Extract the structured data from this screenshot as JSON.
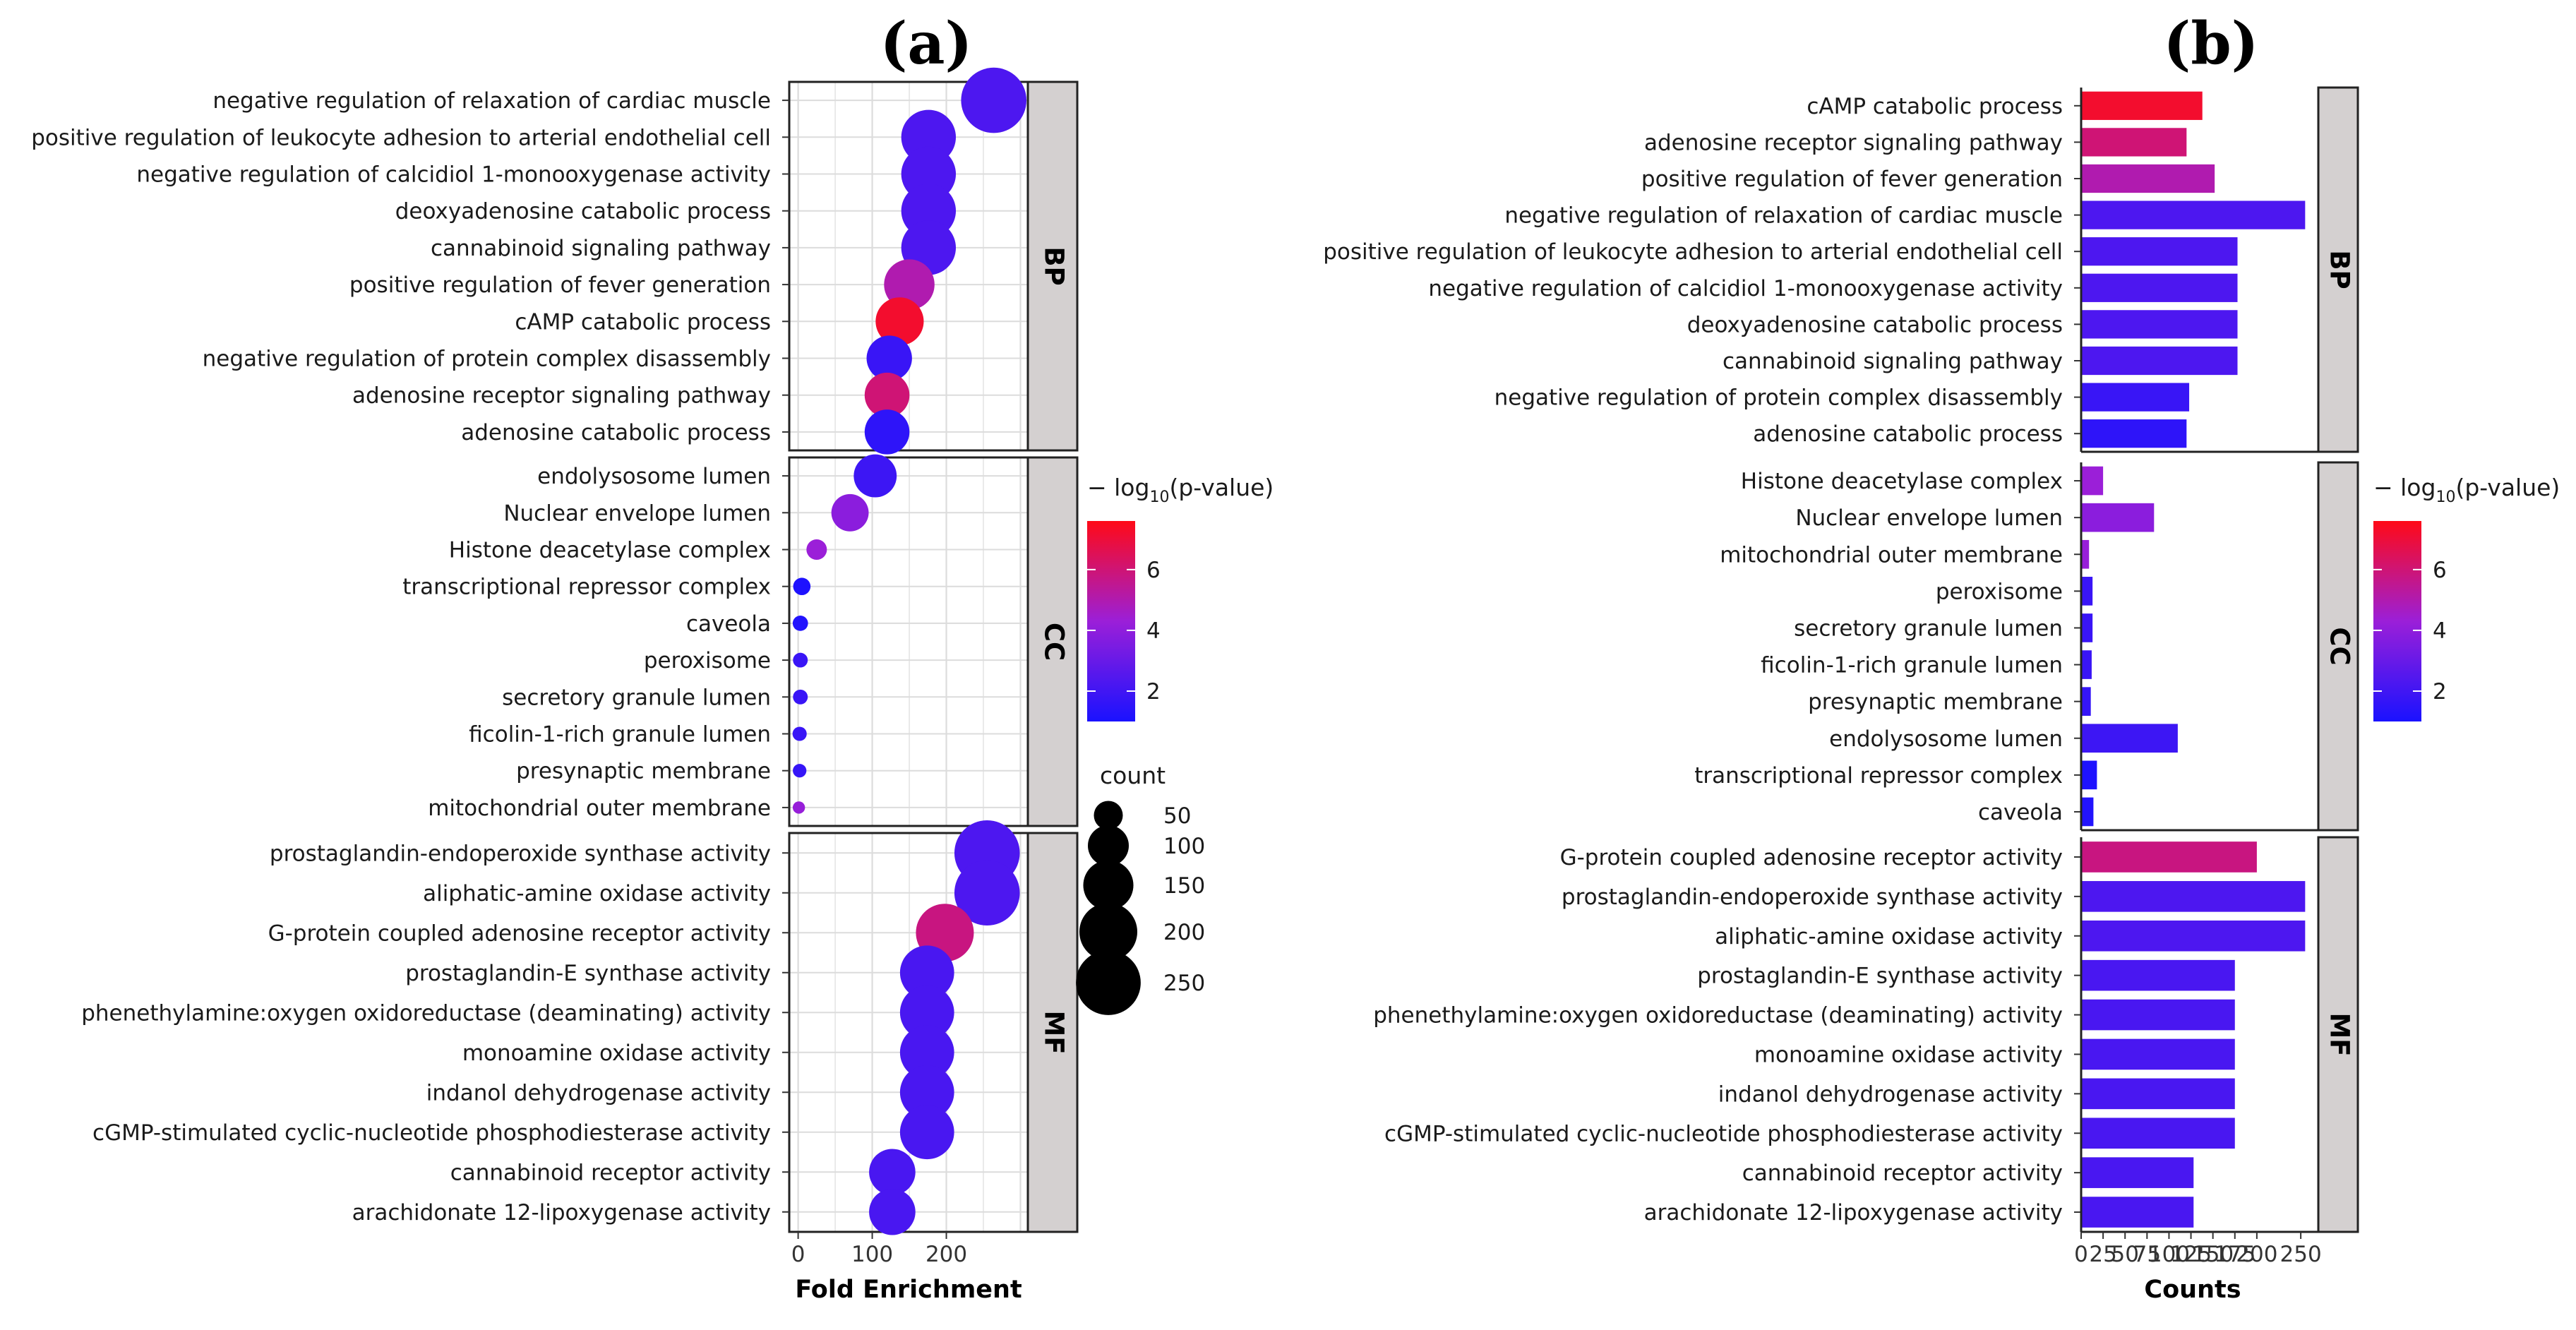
{
  "figure": {
    "panel_a_label": "(a)",
    "panel_b_label": "(b)"
  },
  "chart_data": [
    {
      "type": "scatter",
      "panel": "(a)",
      "xlabel": "Fold Enrichment",
      "ylabel": "",
      "xlim": [
        -12,
        310
      ],
      "xticks": [
        0,
        100,
        200
      ],
      "grid": true,
      "color_legend": {
        "title_prefix": "− log",
        "title_sub": "10",
        "title_suffix": "(p-value)",
        "ticks": [
          2,
          4,
          6
        ],
        "range": [
          1,
          7.6
        ]
      },
      "size_legend": {
        "title": "count",
        "values": [
          50,
          100,
          150,
          200,
          250
        ]
      },
      "facets": [
        {
          "strip": "BP",
          "terms": [
            {
              "term": "negative regulation of relaxation of cardiac muscle",
              "x": 264,
              "count": 255,
              "log_p": 2.3
            },
            {
              "term": "positive regulation of leukocyte adhesion to arterial endothelial cell",
              "x": 176,
              "count": 178,
              "log_p": 2.3
            },
            {
              "term": "negative regulation of calcidiol 1-monooxygenase activity",
              "x": 176,
              "count": 178,
              "log_p": 2.3
            },
            {
              "term": "deoxyadenosine catabolic process",
              "x": 176,
              "count": 178,
              "log_p": 2.3
            },
            {
              "term": "cannabinoid signaling pathway",
              "x": 176,
              "count": 178,
              "log_p": 2.3
            },
            {
              "term": "positive regulation of fever generation",
              "x": 150,
              "count": 152,
              "log_p": 5.0
            },
            {
              "term": "cAMP catabolic process",
              "x": 137,
              "count": 138,
              "log_p": 7.2
            },
            {
              "term": "negative regulation of protein complex disassembly",
              "x": 123,
              "count": 123,
              "log_p": 1.8
            },
            {
              "term": "adenosine receptor signaling pathway",
              "x": 120,
              "count": 120,
              "log_p": 6.0
            },
            {
              "term": "adenosine catabolic process",
              "x": 120,
              "count": 120,
              "log_p": 1.5
            }
          ]
        },
        {
          "strip": "CC",
          "terms": [
            {
              "term": "endolysosome lumen",
              "x": 104,
              "count": 110,
              "log_p": 1.9
            },
            {
              "term": "Nuclear envelope lumen",
              "x": 70,
              "count": 83,
              "log_p": 3.9
            },
            {
              "term": "Histone deacetylase complex",
              "x": 25,
              "count": 25,
              "log_p": 4.3
            },
            {
              "term": "transcriptional repressor complex",
              "x": 5,
              "count": 18,
              "log_p": 1.1
            },
            {
              "term": "caveola",
              "x": 3,
              "count": 14,
              "log_p": 1.2
            },
            {
              "term": "peroxisome",
              "x": 3,
              "count": 13,
              "log_p": 1.8
            },
            {
              "term": "secretory granule lumen",
              "x": 3,
              "count": 13,
              "log_p": 1.8
            },
            {
              "term": "ficolin-1-rich granule lumen",
              "x": 2,
              "count": 12,
              "log_p": 1.8
            },
            {
              "term": "presynaptic membrane",
              "x": 2,
              "count": 11,
              "log_p": 1.7
            },
            {
              "term": "mitochondrial outer membrane",
              "x": 1,
              "count": 9,
              "log_p": 4.2
            }
          ]
        },
        {
          "strip": "MF",
          "terms": [
            {
              "term": "prostaglandin-endoperoxide synthase activity",
              "x": 255,
              "count": 255,
              "log_p": 2.3
            },
            {
              "term": "aliphatic-amine oxidase activity",
              "x": 255,
              "count": 255,
              "log_p": 2.3
            },
            {
              "term": "G-protein coupled adenosine receptor activity",
              "x": 198,
              "count": 200,
              "log_p": 5.8
            },
            {
              "term": "prostaglandin-E synthase activity",
              "x": 174,
              "count": 175,
              "log_p": 2.2
            },
            {
              "term": "phenethylamine:oxygen oxidoreductase (deaminating) activity",
              "x": 174,
              "count": 175,
              "log_p": 2.2
            },
            {
              "term": "monoamine oxidase activity",
              "x": 174,
              "count": 175,
              "log_p": 2.2
            },
            {
              "term": "indanol dehydrogenase activity",
              "x": 174,
              "count": 175,
              "log_p": 2.2
            },
            {
              "term": "cGMP-stimulated cyclic-nucleotide phosphodiesterase activity",
              "x": 174,
              "count": 175,
              "log_p": 2.2
            },
            {
              "term": "cannabinoid receptor activity",
              "x": 127,
              "count": 128,
              "log_p": 2.2
            },
            {
              "term": "arachidonate 12-lipoxygenase activity",
              "x": 127,
              "count": 128,
              "log_p": 2.2
            }
          ]
        }
      ]
    },
    {
      "type": "bar",
      "panel": "(b)",
      "xlabel": "Counts",
      "ylabel": "",
      "xlim": [
        0,
        270
      ],
      "xticks": [
        0,
        25,
        50,
        75,
        100,
        125,
        150,
        175,
        200,
        250
      ],
      "grid": false,
      "color_legend": {
        "title_prefix": "− log",
        "title_sub": "10",
        "title_suffix": "(p-value)",
        "ticks": [
          2,
          4,
          6
        ],
        "range": [
          1,
          7.6
        ]
      },
      "facets": [
        {
          "strip": "BP",
          "terms": [
            {
              "term": "cAMP catabolic process",
              "value": 138,
              "log_p": 7.2
            },
            {
              "term": "adenosine receptor signaling pathway",
              "value": 120,
              "log_p": 6.0
            },
            {
              "term": "positive regulation of fever generation",
              "value": 152,
              "log_p": 5.0
            },
            {
              "term": "negative regulation of relaxation of cardiac muscle",
              "value": 255,
              "log_p": 2.3
            },
            {
              "term": "positive regulation of leukocyte adhesion to arterial endothelial cell",
              "value": 178,
              "log_p": 2.3
            },
            {
              "term": "negative regulation of calcidiol 1-monooxygenase activity",
              "value": 178,
              "log_p": 2.3
            },
            {
              "term": "deoxyadenosine catabolic process",
              "value": 178,
              "log_p": 2.3
            },
            {
              "term": "cannabinoid signaling pathway",
              "value": 178,
              "log_p": 2.3
            },
            {
              "term": "negative regulation of protein complex disassembly",
              "value": 123,
              "log_p": 1.8
            },
            {
              "term": "adenosine catabolic process",
              "value": 120,
              "log_p": 1.5
            }
          ]
        },
        {
          "strip": "CC",
          "terms": [
            {
              "term": "Histone deacetylase complex",
              "value": 25,
              "log_p": 4.3
            },
            {
              "term": "Nuclear envelope lumen",
              "value": 83,
              "log_p": 3.9
            },
            {
              "term": "mitochondrial outer membrane",
              "value": 9,
              "log_p": 4.2
            },
            {
              "term": "peroxisome",
              "value": 13,
              "log_p": 1.8
            },
            {
              "term": "secretory granule lumen",
              "value": 13,
              "log_p": 1.8
            },
            {
              "term": "ficolin-1-rich granule lumen",
              "value": 12,
              "log_p": 1.8
            },
            {
              "term": "presynaptic membrane",
              "value": 11,
              "log_p": 1.7
            },
            {
              "term": "endolysosome lumen",
              "value": 110,
              "log_p": 1.9
            },
            {
              "term": "transcriptional repressor complex",
              "value": 18,
              "log_p": 1.1
            },
            {
              "term": "caveola",
              "value": 14,
              "log_p": 1.2
            }
          ]
        },
        {
          "strip": "MF",
          "terms": [
            {
              "term": "G-protein coupled adenosine receptor activity",
              "value": 200,
              "log_p": 5.8
            },
            {
              "term": "prostaglandin-endoperoxide synthase activity",
              "value": 255,
              "log_p": 2.3
            },
            {
              "term": "aliphatic-amine oxidase activity",
              "value": 255,
              "log_p": 2.3
            },
            {
              "term": "prostaglandin-E synthase activity",
              "value": 175,
              "log_p": 2.2
            },
            {
              "term": "phenethylamine:oxygen oxidoreductase (deaminating) activity",
              "value": 175,
              "log_p": 2.2
            },
            {
              "term": "monoamine oxidase activity",
              "value": 175,
              "log_p": 2.2
            },
            {
              "term": "indanol dehydrogenase activity",
              "value": 175,
              "log_p": 2.2
            },
            {
              "term": "cGMP-stimulated cyclic-nucleotide phosphodiesterase activity",
              "value": 175,
              "log_p": 2.2
            },
            {
              "term": "cannabinoid receptor activity",
              "value": 128,
              "log_p": 2.2
            },
            {
              "term": "arachidonate 12-lipoxygenase activity",
              "value": 128,
              "log_p": 2.2
            }
          ]
        }
      ]
    }
  ],
  "colors": {
    "low": "#1a12ff",
    "mid": "#9b1fd8",
    "high": "#ff0a17",
    "strip_fill": "#d4d0d0",
    "grid": "#dcdcdc"
  }
}
